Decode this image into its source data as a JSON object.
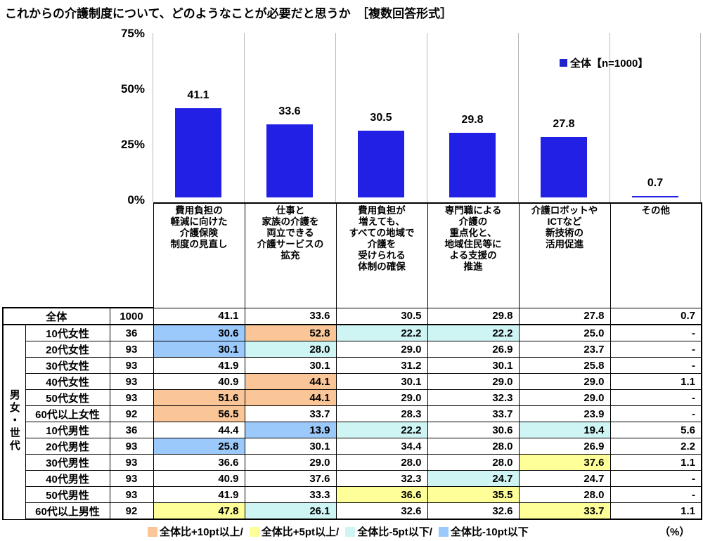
{
  "title": "これからの介護制度について、どのようなことが必要だと思うか　［複数回答形式］",
  "chart_data": {
    "type": "bar",
    "title": "これからの介護制度について、どのようなことが必要だと思うか",
    "categories": [
      "費用負担の軽減に向けた介護保険制度の見直し",
      "仕事と家族の介護を両立できる介護サービスの拡充",
      "費用負担が増えても、すべての地域で介護を受けられる体制の確保",
      "専門職による介護の重点化と、地域住民等による支援の推進",
      "介護ロボットやICTなど新技術の活用促進",
      "その他"
    ],
    "values": [
      41.1,
      33.6,
      30.5,
      29.8,
      27.8,
      0.7
    ],
    "series_name": "全体【n=1000】",
    "xlabel": "",
    "ylabel": "%",
    "ylim": [
      0,
      75
    ],
    "yticks": [
      "75%",
      "50%",
      "25%",
      "0%"
    ],
    "legend_position": "top-right",
    "bar_color": "#2320e6"
  },
  "legend_top": {
    "label": "全体【n=1000】"
  },
  "table": {
    "group_label": "男女・世代",
    "header": [
      "費用負担の\n軽減に向けた\n介護保険\n制度の見直し",
      "仕事と\n家族の介護を\n両立できる\n介護サービスの\n拡充",
      "費用負担が\n増えても、\nすべての地域で\n介護を\n受けられる\n体制の確保",
      "専門職による\n介護の\n重点化と、\n地域住民等に\nよる支援の\n推進",
      "介護ロボットや\nICTなど\n新技術の\n活用促進",
      "その他"
    ],
    "rows": [
      {
        "label": "全体",
        "n": "1000",
        "values": [
          "41.1",
          "33.6",
          "30.5",
          "29.8",
          "27.8",
          "0.7"
        ],
        "hl": [
          "",
          "",
          "",
          "",
          "",
          ""
        ]
      },
      {
        "label": "10代女性",
        "n": "36",
        "values": [
          "30.6",
          "52.8",
          "22.2",
          "22.2",
          "25.0",
          "-"
        ],
        "hl": [
          "b",
          "o",
          "c",
          "c",
          "",
          ""
        ]
      },
      {
        "label": "20代女性",
        "n": "93",
        "values": [
          "30.1",
          "28.0",
          "29.0",
          "26.9",
          "23.7",
          "-"
        ],
        "hl": [
          "b",
          "c",
          "",
          "",
          "",
          ""
        ]
      },
      {
        "label": "30代女性",
        "n": "93",
        "values": [
          "41.9",
          "30.1",
          "31.2",
          "30.1",
          "25.8",
          "-"
        ],
        "hl": [
          "",
          "",
          "",
          "",
          "",
          ""
        ]
      },
      {
        "label": "40代女性",
        "n": "93",
        "values": [
          "40.9",
          "44.1",
          "30.1",
          "29.0",
          "29.0",
          "1.1"
        ],
        "hl": [
          "",
          "o",
          "",
          "",
          "",
          ""
        ]
      },
      {
        "label": "50代女性",
        "n": "93",
        "values": [
          "51.6",
          "44.1",
          "29.0",
          "32.3",
          "29.0",
          "-"
        ],
        "hl": [
          "o",
          "o",
          "",
          "",
          "",
          ""
        ]
      },
      {
        "label": "60代以上女性",
        "n": "92",
        "values": [
          "56.5",
          "33.7",
          "28.3",
          "33.7",
          "23.9",
          "-"
        ],
        "hl": [
          "o",
          "",
          "",
          "",
          "",
          ""
        ]
      },
      {
        "label": "10代男性",
        "n": "36",
        "values": [
          "44.4",
          "13.9",
          "22.2",
          "30.6",
          "19.4",
          "5.6"
        ],
        "hl": [
          "",
          "b",
          "c",
          "",
          "c",
          ""
        ]
      },
      {
        "label": "20代男性",
        "n": "93",
        "values": [
          "25.8",
          "30.1",
          "34.4",
          "28.0",
          "26.9",
          "2.2"
        ],
        "hl": [
          "b",
          "",
          "",
          "",
          "",
          ""
        ]
      },
      {
        "label": "30代男性",
        "n": "93",
        "values": [
          "36.6",
          "29.0",
          "28.0",
          "28.0",
          "37.6",
          "1.1"
        ],
        "hl": [
          "",
          "",
          "",
          "",
          "y",
          ""
        ]
      },
      {
        "label": "40代男性",
        "n": "93",
        "values": [
          "40.9",
          "37.6",
          "32.3",
          "24.7",
          "24.7",
          "-"
        ],
        "hl": [
          "",
          "",
          "",
          "c",
          "",
          ""
        ]
      },
      {
        "label": "50代男性",
        "n": "93",
        "values": [
          "41.9",
          "33.3",
          "36.6",
          "35.5",
          "28.0",
          "-"
        ],
        "hl": [
          "",
          "",
          "y",
          "y",
          "",
          ""
        ]
      },
      {
        "label": "60代以上男性",
        "n": "92",
        "values": [
          "47.8",
          "26.1",
          "32.6",
          "32.6",
          "33.7",
          "1.1"
        ],
        "hl": [
          "y",
          "c",
          "",
          "",
          "y",
          ""
        ]
      }
    ]
  },
  "bottom_legend": {
    "items": [
      {
        "key": "o",
        "label": "全体比+10pt以上/"
      },
      {
        "key": "y",
        "label": "全体比+5pt以上/"
      },
      {
        "key": "c",
        "label": "全体比-5pt以下/"
      },
      {
        "key": "b",
        "label": "全体比-10pt以下"
      }
    ],
    "unit": "（%）"
  },
  "colors": {
    "bar_blue": "#2320e6",
    "legend_marker_blue": "#2222cc",
    "highlight_orange": "#fac698",
    "highlight_yellow": "#ffff99",
    "highlight_cyan": "#cff4f4",
    "highlight_blue": "#9cc9fb"
  }
}
